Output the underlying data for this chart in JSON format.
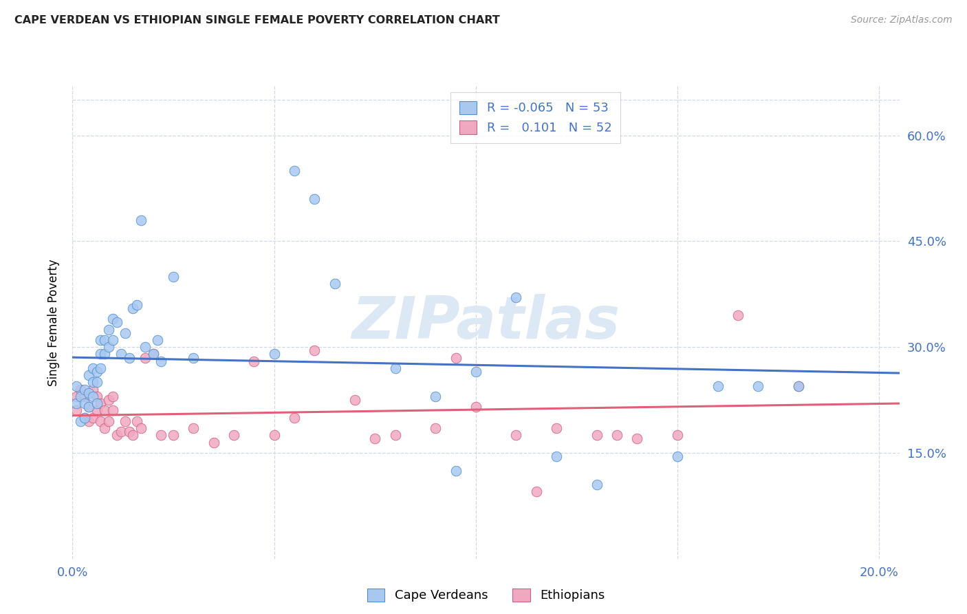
{
  "title": "CAPE VERDEAN VS ETHIOPIAN SINGLE FEMALE POVERTY CORRELATION CHART",
  "source": "Source: ZipAtlas.com",
  "ylabel": "Single Female Poverty",
  "ytick_values": [
    0.15,
    0.3,
    0.45,
    0.6
  ],
  "ytick_labels": [
    "15.0%",
    "30.0%",
    "45.0%",
    "60.0%"
  ],
  "xtick_values": [
    0.0,
    0.05,
    0.1,
    0.15,
    0.2
  ],
  "xtick_labels": [
    "0.0%",
    "",
    "",
    "",
    "20.0%"
  ],
  "xlim": [
    0.0,
    0.205
  ],
  "ylim": [
    0.0,
    0.67
  ],
  "R_cape_verdean": -0.065,
  "N_cape_verdean": 53,
  "R_ethiopian": 0.101,
  "N_ethiopian": 52,
  "cape_verdean_color": "#a8c8f0",
  "ethiopian_color": "#f0a8c0",
  "cape_verdean_edge_color": "#5090d0",
  "ethiopian_edge_color": "#d06080",
  "trend_cv_color": "#4472c4",
  "trend_eth_color": "#e0607a",
  "grid_color": "#d0d8e8",
  "watermark": "ZIPatlas",
  "watermark_color": "#dde8f5",
  "bg_color": "#ffffff",
  "title_color": "#222222",
  "source_color": "#999999",
  "axis_label_color": "#4472c4",
  "legend_r_color": "#4472c4",
  "marker_size": 110,
  "trend_linewidth": 2.2,
  "cape_verdean_x": [
    0.001,
    0.001,
    0.002,
    0.002,
    0.003,
    0.003,
    0.003,
    0.004,
    0.004,
    0.004,
    0.005,
    0.005,
    0.005,
    0.006,
    0.006,
    0.006,
    0.007,
    0.007,
    0.007,
    0.008,
    0.008,
    0.009,
    0.009,
    0.01,
    0.01,
    0.011,
    0.012,
    0.013,
    0.014,
    0.015,
    0.016,
    0.017,
    0.018,
    0.02,
    0.021,
    0.022,
    0.025,
    0.03,
    0.05,
    0.055,
    0.06,
    0.065,
    0.08,
    0.09,
    0.095,
    0.1,
    0.11,
    0.12,
    0.13,
    0.15,
    0.16,
    0.17,
    0.18
  ],
  "cape_verdean_y": [
    0.245,
    0.22,
    0.23,
    0.195,
    0.24,
    0.22,
    0.2,
    0.26,
    0.235,
    0.215,
    0.27,
    0.25,
    0.23,
    0.265,
    0.25,
    0.22,
    0.31,
    0.29,
    0.27,
    0.31,
    0.29,
    0.325,
    0.3,
    0.34,
    0.31,
    0.335,
    0.29,
    0.32,
    0.285,
    0.355,
    0.36,
    0.48,
    0.3,
    0.29,
    0.31,
    0.28,
    0.4,
    0.285,
    0.29,
    0.55,
    0.51,
    0.39,
    0.27,
    0.23,
    0.125,
    0.265,
    0.37,
    0.145,
    0.105,
    0.145,
    0.245,
    0.245,
    0.245
  ],
  "ethiopian_x": [
    0.001,
    0.001,
    0.002,
    0.003,
    0.003,
    0.004,
    0.004,
    0.005,
    0.005,
    0.006,
    0.006,
    0.007,
    0.007,
    0.008,
    0.008,
    0.009,
    0.009,
    0.01,
    0.01,
    0.011,
    0.012,
    0.013,
    0.014,
    0.015,
    0.016,
    0.017,
    0.018,
    0.02,
    0.022,
    0.025,
    0.03,
    0.035,
    0.04,
    0.045,
    0.05,
    0.055,
    0.06,
    0.07,
    0.075,
    0.08,
    0.09,
    0.095,
    0.1,
    0.11,
    0.115,
    0.12,
    0.13,
    0.135,
    0.14,
    0.15,
    0.165,
    0.18
  ],
  "ethiopian_y": [
    0.23,
    0.21,
    0.24,
    0.2,
    0.23,
    0.215,
    0.195,
    0.24,
    0.2,
    0.21,
    0.23,
    0.195,
    0.22,
    0.21,
    0.185,
    0.195,
    0.225,
    0.21,
    0.23,
    0.175,
    0.18,
    0.195,
    0.18,
    0.175,
    0.195,
    0.185,
    0.285,
    0.29,
    0.175,
    0.175,
    0.185,
    0.165,
    0.175,
    0.28,
    0.175,
    0.2,
    0.295,
    0.225,
    0.17,
    0.175,
    0.185,
    0.285,
    0.215,
    0.175,
    0.095,
    0.185,
    0.175,
    0.175,
    0.17,
    0.175,
    0.345,
    0.245
  ]
}
